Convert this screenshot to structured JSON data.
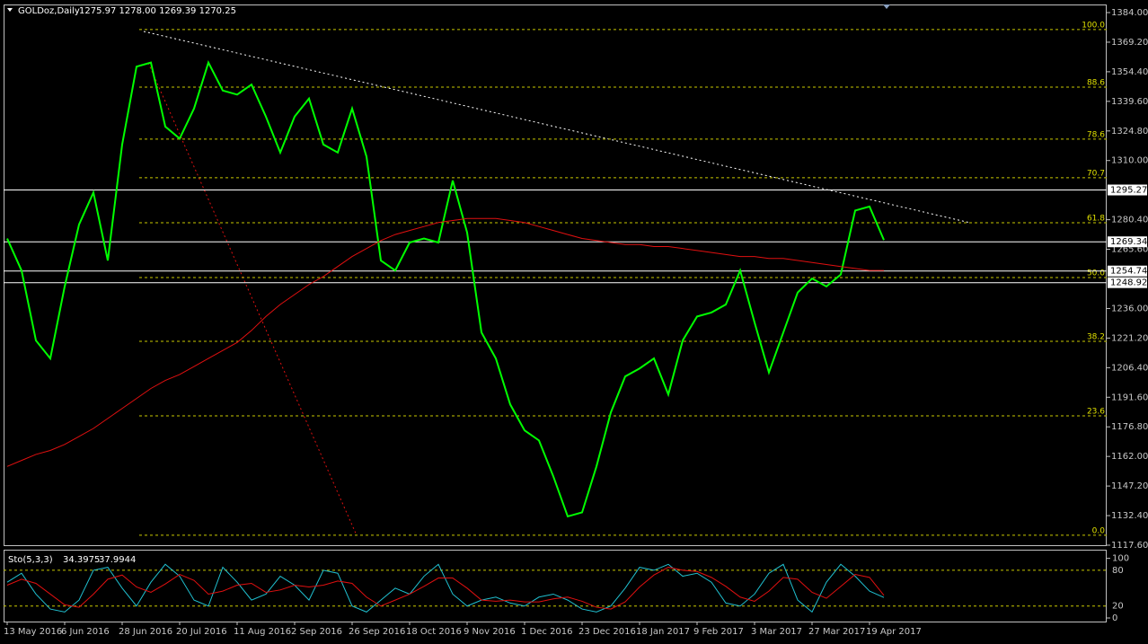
{
  "chart_data": [
    {
      "type": "line",
      "title": "GOLDoz,Daily",
      "subtitle": "1275.97 1278.00 1269.39 1270.25",
      "categories": [
        "13 May 2016",
        null,
        null,
        null,
        "6 Jun 2016",
        null,
        null,
        null,
        "28 Jun 2016",
        null,
        null,
        null,
        "20 Jul 2016",
        null,
        null,
        null,
        "11 Aug 2016",
        null,
        null,
        null,
        "2 Sep 2016",
        null,
        null,
        null,
        "26 Sep 2016",
        null,
        null,
        null,
        "18 Oct 2016",
        null,
        null,
        null,
        "9 Nov 2016",
        null,
        null,
        null,
        "1 Dec 2016",
        null,
        null,
        null,
        "23 Dec 2016",
        null,
        null,
        null,
        "18 Jan 2017",
        null,
        null,
        null,
        "9 Feb 2017",
        null,
        null,
        null,
        "3 Mar 2017",
        null,
        null,
        null,
        "27 Mar 2017",
        null,
        null,
        null,
        "19 Apr 2017",
        null
      ],
      "series": [
        {
          "color": "#00ff00",
          "values": [
            1271,
            1255,
            1220,
            1211,
            1247,
            1278,
            1294,
            1260,
            1318,
            1357,
            1359,
            1327,
            1321,
            1336,
            1359,
            1345,
            1343,
            1348,
            1332,
            1314,
            1332,
            1341,
            1318,
            1314,
            1336,
            1312,
            1260,
            1255,
            1269,
            1271,
            1269,
            1300,
            1274,
            1224,
            1211,
            1188,
            1175,
            1170,
            1152,
            1132,
            1134,
            1157,
            1184,
            1202,
            1206,
            1211,
            1193,
            1220,
            1232,
            1234,
            1238,
            1255,
            1229,
            1204,
            1224,
            1244,
            1251,
            1247,
            1253,
            1285,
            1287,
            1270.25
          ]
        },
        {
          "color": "#e01010",
          "values": [
            1157,
            1160,
            1163,
            1165,
            1168,
            1172,
            1176,
            1181,
            1186,
            1191,
            1196,
            1200,
            1203,
            1207,
            1211,
            1215,
            1219,
            1225,
            1232,
            1238,
            1243,
            1248,
            1252,
            1257,
            1262,
            1266,
            1270,
            1273,
            1275,
            1277,
            1279,
            1280,
            1281,
            1281,
            1281,
            1280,
            1279,
            1277,
            1275,
            1273,
            1271,
            1270,
            1269,
            1268,
            1268,
            1267,
            1267,
            1266,
            1265,
            1264,
            1263,
            1262,
            1262,
            1261,
            1261,
            1260,
            1259,
            1258,
            1257,
            1256,
            1255,
            1255
          ]
        }
      ],
      "ylim": [
        1117.6,
        1387.6
      ],
      "yticks": [
        {
          "value": 1384,
          "label": "1384.00"
        },
        {
          "value": 1369.2,
          "label": "1369.20"
        },
        {
          "value": 1354.4,
          "label": "1354.40"
        },
        {
          "value": 1339.6,
          "label": "1339.60"
        },
        {
          "value": 1324.8,
          "label": "1324.80"
        },
        {
          "value": 1310,
          "label": "1310.00"
        },
        {
          "value": 1280.4,
          "label": "1280.40"
        },
        {
          "value": 1265.6,
          "label": "1265.60"
        },
        {
          "value": 1236,
          "label": "1236.00"
        },
        {
          "value": 1221.2,
          "label": "1221.20"
        },
        {
          "value": 1206.4,
          "label": "1206.40"
        },
        {
          "value": 1191.6,
          "label": "1191.60"
        },
        {
          "value": 1176.8,
          "label": "1176.80"
        },
        {
          "value": 1162,
          "label": "1162.00"
        },
        {
          "value": 1147.2,
          "label": "1147.20"
        },
        {
          "value": 1132.4,
          "label": "1132.40"
        },
        {
          "value": 1117.6,
          "label": "1117.60"
        }
      ],
      "levels": [
        1295.27,
        1269.34,
        1254.74,
        1248.92
      ],
      "fib_levels": [
        {
          "label": "100.0",
          "price": 1375.5
        },
        {
          "label": "88.6",
          "price": 1346.7
        },
        {
          "label": "78.6",
          "price": 1320.7
        },
        {
          "label": "70.7",
          "price": 1301.4
        },
        {
          "label": "61.8",
          "price": 1278.9
        },
        {
          "label": "50.0",
          "price": 1251.5
        },
        {
          "label": "38.2",
          "price": 1219.6
        },
        {
          "label": "23.6",
          "price": 1182.3
        },
        {
          "label": "0.0",
          "price": 1122.6
        }
      ]
    },
    {
      "type": "line",
      "title": "Sto(5,3,3)",
      "series": [
        {
          "color": "#20c0d0",
          "values": [
            60,
            75,
            40,
            15,
            10,
            30,
            80,
            85,
            50,
            20,
            60,
            90,
            70,
            30,
            20,
            85,
            60,
            30,
            40,
            70,
            55,
            30,
            80,
            75,
            20,
            10,
            30,
            50,
            40,
            70,
            90,
            40,
            20,
            30,
            35,
            25,
            20,
            35,
            40,
            30,
            15,
            10,
            20,
            50,
            85,
            80,
            90,
            70,
            75,
            60,
            25,
            20,
            40,
            75,
            90,
            30,
            10,
            60,
            90,
            70,
            45,
            34.3975
          ]
        },
        {
          "color": "#e01010",
          "values": [
            55,
            65,
            58,
            40,
            22,
            18,
            40,
            65,
            72,
            52,
            43,
            57,
            73,
            63,
            40,
            45,
            55,
            58,
            43,
            47,
            55,
            52,
            55,
            62,
            58,
            35,
            20,
            30,
            40,
            53,
            67,
            67,
            50,
            30,
            28,
            30,
            27,
            27,
            32,
            35,
            28,
            18,
            15,
            27,
            52,
            72,
            85,
            80,
            78,
            68,
            53,
            35,
            28,
            45,
            68,
            65,
            43,
            33,
            53,
            73,
            68,
            37.9944
          ]
        }
      ],
      "ylim": [
        -6,
        113
      ],
      "yticks": [
        0,
        20,
        80,
        100
      ]
    }
  ]
}
